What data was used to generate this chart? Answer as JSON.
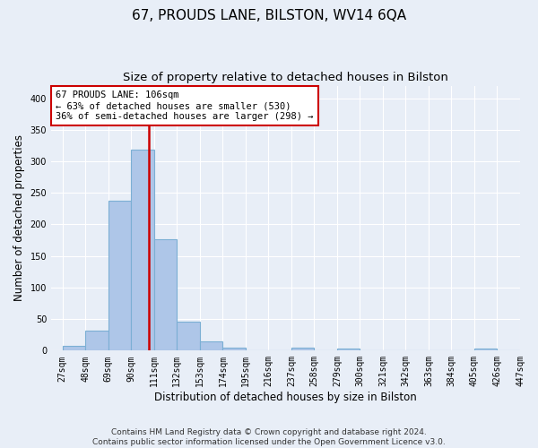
{
  "title": "67, PROUDS LANE, BILSTON, WV14 6QA",
  "subtitle": "Size of property relative to detached houses in Bilston",
  "xlabel": "Distribution of detached houses by size in Bilston",
  "ylabel": "Number of detached properties",
  "bar_values": [
    8,
    32,
    238,
    318,
    176,
    46,
    15,
    5,
    0,
    0,
    5,
    0,
    3,
    0,
    0,
    0,
    0,
    0,
    3,
    0
  ],
  "bin_labels": [
    "27sqm",
    "48sqm",
    "69sqm",
    "90sqm",
    "111sqm",
    "132sqm",
    "153sqm",
    "174sqm",
    "195sqm",
    "216sqm",
    "237sqm",
    "258sqm",
    "279sqm",
    "300sqm",
    "321sqm",
    "342sqm",
    "363sqm",
    "384sqm",
    "405sqm",
    "426sqm",
    "447sqm"
  ],
  "bar_color": "#aec6e8",
  "bar_edge_color": "#7bafd4",
  "vline_color": "#cc0000",
  "annotation_box_text": "67 PROUDS LANE: 106sqm\n← 63% of detached houses are smaller (530)\n36% of semi-detached houses are larger (298) →",
  "annotation_box_color": "#ffffff",
  "annotation_box_edge_color": "#cc0000",
  "ylim": [
    0,
    420
  ],
  "yticks": [
    0,
    50,
    100,
    150,
    200,
    250,
    300,
    350,
    400
  ],
  "footer_text": "Contains HM Land Registry data © Crown copyright and database right 2024.\nContains public sector information licensed under the Open Government Licence v3.0.",
  "bg_color": "#e8eef7",
  "grid_color": "#ffffff",
  "title_fontsize": 11,
  "subtitle_fontsize": 9.5,
  "xlabel_fontsize": 8.5,
  "ylabel_fontsize": 8.5,
  "tick_fontsize": 7,
  "footer_fontsize": 6.5,
  "ann_fontsize": 7.5
}
